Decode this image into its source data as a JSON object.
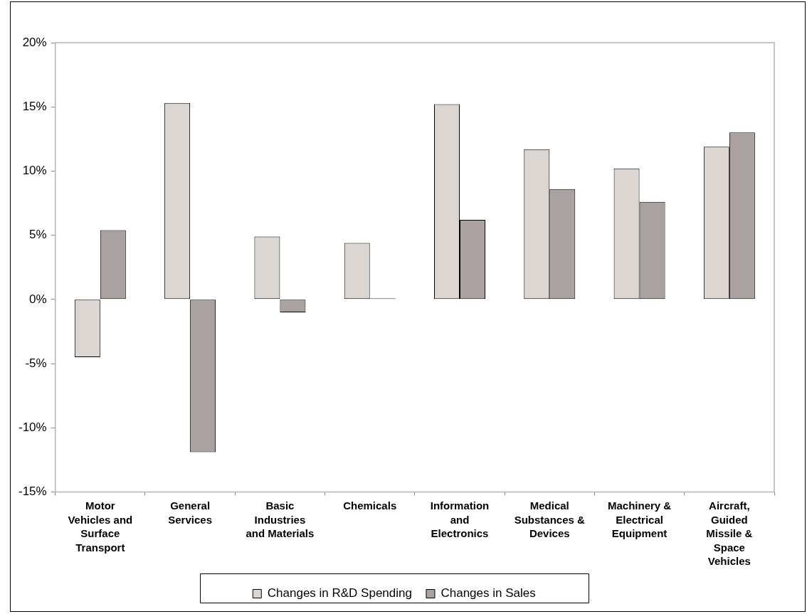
{
  "chart_data": {
    "type": "bar",
    "categories": [
      "Motor Vehicles and Surface Transport",
      "General Services",
      "Basic Industries and Materials",
      "Chemicals",
      "Information and Electronics",
      "Medical Substances & Devices",
      "Machinery & Electrical Equipment",
      "Aircraft, Guided Missile & Space Vehicles"
    ],
    "series": [
      {
        "name": "Changes in R&D Spending",
        "color": "#dcd6d3",
        "values": [
          -4.5,
          15.3,
          4.9,
          4.4,
          15.2,
          11.7,
          10.2,
          11.9
        ]
      },
      {
        "name": "Changes in Sales",
        "color": "#aaa2a0",
        "values": [
          5.4,
          -11.9,
          -1.0,
          0.1,
          6.2,
          8.6,
          7.6,
          13.0
        ]
      }
    ],
    "ylim": [
      -15,
      20
    ],
    "yticks": [
      {
        "value": -15,
        "label": "-15%"
      },
      {
        "value": -10,
        "label": "-10%"
      },
      {
        "value": -5,
        "label": "-5%"
      },
      {
        "value": 0,
        "label": "0%"
      },
      {
        "value": 5,
        "label": "5%"
      },
      {
        "value": 10,
        "label": "10%"
      },
      {
        "value": 15,
        "label": "15%"
      },
      {
        "value": 20,
        "label": "20%"
      }
    ],
    "grid": false,
    "legend": "bottom"
  }
}
